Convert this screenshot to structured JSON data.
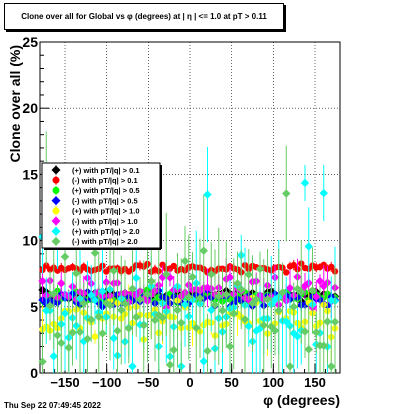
{
  "title": "Clone  over all for Global vs φ (degrees) at |  η | <= 1.0 at pT > 0.11",
  "timestamp": "Thu Sep 22 07:49:45 2022",
  "chart_data": {
    "type": "scatter",
    "title": "Clone  over all for Global vs φ (degrees) at |  η | <= 1.0 at pT > 0.11",
    "xlabel": "φ (degrees)",
    "ylabel": "Clone  over all (%)",
    "xlim": [
      -180,
      180
    ],
    "ylim": [
      0,
      25
    ],
    "xticks": [
      -150,
      -100,
      -50,
      0,
      50,
      100,
      150
    ],
    "xtick_labels": [
      "−150",
      "−100",
      "−50",
      "0",
      "50",
      "100",
      "150"
    ],
    "yticks": [
      0,
      5,
      10,
      15,
      20,
      25
    ],
    "ytick_labels": [
      "0",
      "5",
      "10",
      "15",
      "20",
      "25"
    ],
    "grid": true,
    "legend_position": "middle-left",
    "series": [
      {
        "name": "(+) with pT/|q| > 0.1",
        "color": "#000000",
        "marker": "diamond",
        "base": 5.9,
        "noise": 0.25,
        "err": 0.2
      },
      {
        "name": "(-) with pT/|q| > 0.1",
        "color": "#ff0000",
        "marker": "circle",
        "base": 7.9,
        "noise": 0.2,
        "err": 0.2
      },
      {
        "name": "(+) with pT/|q| > 0.5",
        "color": "#00ff00",
        "marker": "circle",
        "base": 5.7,
        "noise": 0.35,
        "err": 0.3
      },
      {
        "name": "(-) with pT/|q| > 0.5",
        "color": "#0000ff",
        "marker": "diamond",
        "base": 5.6,
        "noise": 0.35,
        "err": 0.3
      },
      {
        "name": "(+) with pT/|q| > 1.0",
        "color": "#ffff00",
        "marker": "circle",
        "base": 4.2,
        "noise": 1.0,
        "err": 0.9
      },
      {
        "name": "(-) with pT/|q| > 1.0",
        "color": "#ff00ff",
        "marker": "diamond",
        "base": 6.3,
        "noise": 0.9,
        "err": 0.8
      },
      {
        "name": "(+) with pT/|q| > 2.0",
        "color": "#00ffff",
        "marker": "diamond",
        "base": 4.0,
        "noise": 2.2,
        "err": 2.2
      },
      {
        "name": "(-) with pT/|q| > 2.0",
        "color": "#66cc66",
        "marker": "diamond",
        "base": 4.5,
        "noise": 2.6,
        "err": 2.6
      }
    ]
  }
}
